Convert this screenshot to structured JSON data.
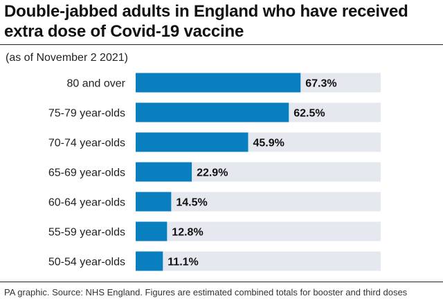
{
  "title": "Double-jabbed adults in England who have received extra dose of Covid-19 vaccine",
  "subtitle": "(as of November 2 2021)",
  "footer": "PA graphic. Source: NHS England. Figures are estimated combined totals for booster and third doses",
  "colors": {
    "bar": "#0a7fc0",
    "track": "#e6e8ef"
  },
  "chart_data": {
    "type": "bar",
    "orientation": "horizontal",
    "categories": [
      "80 and over",
      "75-79 year-olds",
      "70-74 year-olds",
      "65-69 year-olds",
      "60-64 year-olds",
      "55-59 year-olds",
      "50-54 year-olds"
    ],
    "values": [
      67.3,
      62.5,
      45.9,
      22.9,
      14.5,
      12.8,
      11.1
    ],
    "value_labels": [
      "67.3%",
      "62.5%",
      "45.9%",
      "22.9%",
      "14.5%",
      "12.8%",
      "11.1%"
    ],
    "xlim": [
      0,
      100
    ],
    "grid": false,
    "legend": "none"
  }
}
